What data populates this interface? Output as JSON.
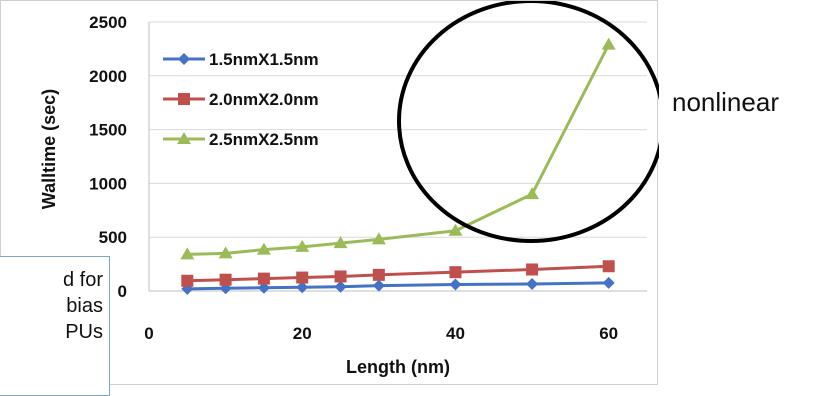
{
  "chart_data": {
    "type": "line",
    "title": "",
    "xlabel": "Length (nm)",
    "ylabel": "Walltime (sec)",
    "xlim": [
      0,
      65
    ],
    "ylim": [
      0,
      2500
    ],
    "x_ticks": [
      0,
      20,
      40,
      60
    ],
    "y_ticks": [
      0,
      500,
      1000,
      1500,
      2000,
      2500
    ],
    "grid": "horizontal",
    "legend_position": "top-left",
    "series": [
      {
        "name": "1.5nmX1.5nm",
        "color": "#4472c4",
        "marker": "diamond",
        "x": [
          5,
          10,
          15,
          20,
          25,
          30,
          40,
          50,
          60
        ],
        "y": [
          20,
          25,
          30,
          35,
          40,
          50,
          60,
          65,
          75
        ]
      },
      {
        "name": "2.0nmX2.0nm",
        "color": "#c0504d",
        "marker": "square",
        "x": [
          5,
          10,
          15,
          20,
          25,
          30,
          40,
          50,
          60
        ],
        "y": [
          95,
          105,
          115,
          125,
          135,
          150,
          175,
          200,
          230
        ]
      },
      {
        "name": "2.5nmX2.5nm",
        "color": "#9bbb59",
        "marker": "triangle",
        "x": [
          5,
          10,
          15,
          20,
          25,
          30,
          40,
          50,
          60
        ],
        "y": [
          340,
          350,
          385,
          410,
          445,
          480,
          560,
          900,
          2290
        ]
      }
    ]
  },
  "annotation": {
    "side_label": "nonlinear",
    "caption_lines": [
      "d for",
      "bias",
      "PUs"
    ]
  }
}
